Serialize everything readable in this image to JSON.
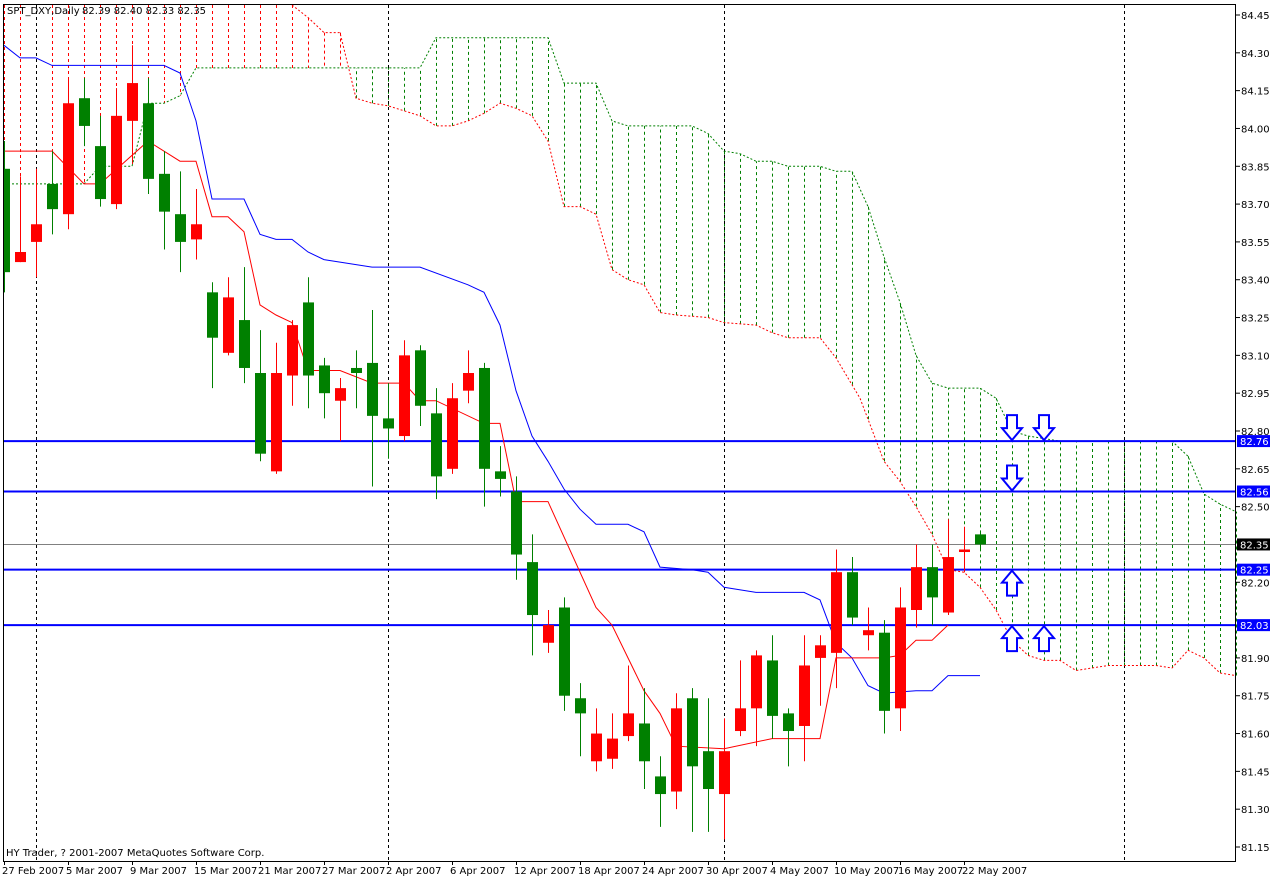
{
  "header": {
    "symbol_period": "SPT_DXY,Daily",
    "ohlc_text": "82.39 82.40 82.33 82.35"
  },
  "footer": {
    "copyright": "HY Trader, ? 2001-2007 MetaQuotes Software Corp."
  },
  "colors": {
    "bull_candle": "#ff0000",
    "bear_candle": "#008000",
    "tenkan": "#ff0000",
    "kijun": "#0000ff",
    "span_a": "#ff0000",
    "span_b": "#008000",
    "level_line": "#0000ff",
    "bid_line": "#808080",
    "arrow": "#0000ff"
  },
  "chart_data": {
    "type": "candlestick",
    "ylim": [
      81.15,
      84.45
    ],
    "y_ticks": [
      "84.45",
      "84.30",
      "84.15",
      "84.00",
      "83.85",
      "83.70",
      "83.55",
      "83.40",
      "83.25",
      "83.10",
      "82.95",
      "82.80",
      "82.65",
      "82.50",
      "82.20",
      "81.90",
      "81.75",
      "81.60",
      "81.45",
      "81.30",
      "81.15"
    ],
    "x_labels": [
      {
        "bar": 0,
        "label": "27 Feb 2007"
      },
      {
        "bar": 4,
        "label": "5 Mar 2007"
      },
      {
        "bar": 8,
        "label": "9 Mar 2007"
      },
      {
        "bar": 12,
        "label": "15 Mar 2007"
      },
      {
        "bar": 16,
        "label": "21 Mar 2007"
      },
      {
        "bar": 20,
        "label": "27 Mar 2007"
      },
      {
        "bar": 24,
        "label": "2 Apr 2007"
      },
      {
        "bar": 28,
        "label": "6 Apr 2007"
      },
      {
        "bar": 32,
        "label": "12 Apr 2007"
      },
      {
        "bar": 36,
        "label": "18 Apr 2007"
      },
      {
        "bar": 40,
        "label": "24 Apr 2007"
      },
      {
        "bar": 44,
        "label": "30 Apr 2007"
      },
      {
        "bar": 48,
        "label": "4 May 2007"
      },
      {
        "bar": 52,
        "label": "10 May 2007"
      },
      {
        "bar": 56,
        "label": "16 May 2007"
      },
      {
        "bar": 60,
        "label": "22 May 2007"
      }
    ],
    "grid_bars": [
      2,
      24,
      45,
      70
    ],
    "candles_ohlc": [
      [
        83.84,
        83.95,
        83.35,
        83.43
      ],
      [
        83.47,
        83.81,
        83.47,
        83.51
      ],
      [
        83.55,
        83.84,
        83.41,
        83.62
      ],
      [
        83.78,
        83.91,
        83.58,
        83.68
      ],
      [
        83.66,
        84.2,
        83.6,
        84.1
      ],
      [
        84.12,
        84.2,
        83.93,
        84.01
      ],
      [
        83.93,
        84.05,
        83.69,
        83.72
      ],
      [
        83.7,
        84.16,
        83.68,
        84.05
      ],
      [
        84.03,
        84.33,
        83.87,
        84.18
      ],
      [
        84.1,
        84.2,
        83.74,
        83.8
      ],
      [
        83.82,
        83.91,
        83.52,
        83.67
      ],
      [
        83.66,
        83.83,
        83.43,
        83.55
      ],
      [
        83.56,
        83.76,
        83.48,
        83.62
      ],
      [
        83.35,
        83.39,
        82.97,
        83.17
      ],
      [
        83.11,
        83.41,
        83.1,
        83.33
      ],
      [
        83.24,
        83.45,
        82.99,
        83.05
      ],
      [
        83.03,
        83.2,
        82.68,
        82.71
      ],
      [
        82.64,
        83.15,
        82.63,
        83.03
      ],
      [
        83.02,
        83.24,
        82.9,
        83.22
      ],
      [
        83.31,
        83.41,
        82.89,
        83.02
      ],
      [
        83.06,
        83.09,
        82.85,
        82.95
      ],
      [
        82.92,
        83.01,
        82.76,
        82.97
      ],
      [
        83.05,
        83.12,
        82.89,
        83.03
      ],
      [
        83.07,
        83.28,
        82.58,
        82.86
      ],
      [
        82.85,
        82.99,
        82.69,
        82.81
      ],
      [
        82.78,
        83.16,
        82.76,
        83.1
      ],
      [
        83.12,
        83.14,
        82.82,
        82.9
      ],
      [
        82.87,
        82.97,
        82.53,
        82.62
      ],
      [
        82.65,
        82.99,
        82.63,
        82.93
      ],
      [
        82.96,
        83.12,
        82.91,
        83.03
      ],
      [
        83.05,
        83.07,
        82.5,
        82.65
      ],
      [
        82.64,
        82.74,
        82.54,
        82.61
      ],
      [
        82.56,
        82.62,
        82.21,
        82.31
      ],
      [
        82.28,
        82.39,
        81.91,
        82.07
      ],
      [
        81.96,
        82.09,
        81.92,
        82.03
      ],
      [
        82.1,
        82.14,
        81.69,
        81.75
      ],
      [
        81.74,
        81.8,
        81.51,
        81.68
      ],
      [
        81.49,
        81.7,
        81.45,
        81.6
      ],
      [
        81.5,
        81.68,
        81.46,
        81.58
      ],
      [
        81.59,
        81.87,
        81.57,
        81.68
      ],
      [
        81.64,
        81.78,
        81.38,
        81.49
      ],
      [
        81.43,
        81.51,
        81.23,
        81.36
      ],
      [
        81.37,
        81.76,
        81.3,
        81.7
      ],
      [
        81.74,
        81.78,
        81.21,
        81.47
      ],
      [
        81.53,
        81.74,
        81.21,
        81.38
      ],
      [
        81.36,
        81.66,
        81.18,
        81.53
      ],
      [
        81.61,
        81.89,
        81.59,
        81.7
      ],
      [
        81.7,
        81.93,
        81.55,
        81.91
      ],
      [
        81.89,
        81.99,
        81.58,
        81.67
      ],
      [
        81.68,
        81.7,
        81.47,
        81.61
      ],
      [
        81.63,
        81.99,
        81.49,
        81.87
      ],
      [
        81.9,
        81.99,
        81.71,
        81.95
      ],
      [
        81.92,
        82.33,
        81.78,
        82.24
      ],
      [
        82.24,
        82.3,
        82.03,
        82.06
      ],
      [
        81.99,
        82.1,
        81.93,
        82.01
      ],
      [
        82.0,
        82.05,
        81.6,
        81.69
      ],
      [
        81.7,
        82.18,
        81.61,
        82.1
      ],
      [
        82.09,
        82.35,
        82.02,
        82.26
      ],
      [
        82.26,
        82.35,
        82.03,
        82.14
      ],
      [
        82.08,
        82.45,
        82.07,
        82.3
      ],
      [
        82.32,
        82.42,
        82.24,
        82.33
      ],
      [
        82.39,
        82.4,
        82.33,
        82.35
      ]
    ],
    "tenkan": [
      [
        0,
        83.91
      ],
      [
        3,
        83.91
      ],
      [
        5,
        83.78
      ],
      [
        6,
        83.78
      ],
      [
        9,
        83.95
      ],
      [
        11,
        83.87
      ],
      [
        12,
        83.87
      ],
      [
        13,
        83.65
      ],
      [
        14,
        83.65
      ],
      [
        15,
        83.59
      ],
      [
        16,
        83.3
      ],
      [
        17,
        83.26
      ],
      [
        18,
        83.23
      ],
      [
        19,
        83.04
      ],
      [
        21,
        83.04
      ],
      [
        23,
        82.99
      ],
      [
        25,
        82.99
      ],
      [
        26,
        82.92
      ],
      [
        27,
        82.92
      ],
      [
        30,
        82.83
      ],
      [
        31,
        82.83
      ],
      [
        32,
        82.52
      ],
      [
        34,
        82.52
      ],
      [
        37,
        82.1
      ],
      [
        38,
        82.03
      ],
      [
        40,
        81.77
      ],
      [
        41,
        81.68
      ],
      [
        42,
        81.55
      ],
      [
        45,
        81.54
      ],
      [
        48,
        81.58
      ],
      [
        51,
        81.58
      ],
      [
        52,
        81.9
      ],
      [
        55,
        81.9
      ],
      [
        56,
        81.91
      ],
      [
        57,
        81.97
      ],
      [
        58,
        81.97
      ],
      [
        59,
        82.03
      ]
    ],
    "kijun": [
      [
        0,
        84.33
      ],
      [
        1,
        84.28
      ],
      [
        2,
        84.28
      ],
      [
        3,
        84.25
      ],
      [
        10,
        84.25
      ],
      [
        11,
        84.22
      ],
      [
        12,
        84.03
      ],
      [
        13,
        83.72
      ],
      [
        15,
        83.72
      ],
      [
        16,
        83.58
      ],
      [
        17,
        83.56
      ],
      [
        18,
        83.56
      ],
      [
        19,
        83.51
      ],
      [
        20,
        83.48
      ],
      [
        23,
        83.45
      ],
      [
        26,
        83.45
      ],
      [
        29,
        83.38
      ],
      [
        30,
        83.35
      ],
      [
        31,
        83.22
      ],
      [
        32,
        82.96
      ],
      [
        33,
        82.78
      ],
      [
        34,
        82.68
      ],
      [
        35,
        82.57
      ],
      [
        36,
        82.49
      ],
      [
        37,
        82.43
      ],
      [
        39,
        82.43
      ],
      [
        40,
        82.4
      ],
      [
        41,
        82.26
      ],
      [
        43,
        82.25
      ],
      [
        44,
        82.24
      ],
      [
        45,
        82.18
      ],
      [
        47,
        82.16
      ],
      [
        50,
        82.16
      ],
      [
        51,
        82.13
      ],
      [
        52,
        81.96
      ],
      [
        53,
        81.9
      ],
      [
        54,
        81.79
      ],
      [
        55,
        81.76
      ],
      [
        57,
        81.77
      ],
      [
        58,
        81.77
      ],
      [
        59,
        81.83
      ],
      [
        61,
        81.83
      ]
    ],
    "span_a": [
      [
        18,
        84.51
      ],
      [
        19,
        84.44
      ],
      [
        20,
        84.38
      ],
      [
        21,
        84.38
      ],
      [
        22,
        84.12
      ],
      [
        23,
        84.1
      ],
      [
        24,
        84.09
      ],
      [
        26,
        84.05
      ],
      [
        27,
        84.01
      ],
      [
        28,
        84.01
      ],
      [
        29,
        84.03
      ],
      [
        30,
        84.06
      ],
      [
        31,
        84.1
      ],
      [
        32,
        84.08
      ],
      [
        33,
        84.05
      ],
      [
        34,
        83.95
      ],
      [
        35,
        83.69
      ],
      [
        36,
        83.69
      ],
      [
        37,
        83.66
      ],
      [
        38,
        83.44
      ],
      [
        39,
        83.4
      ],
      [
        40,
        83.38
      ],
      [
        41,
        83.27
      ],
      [
        42,
        83.26
      ],
      [
        44,
        83.25
      ],
      [
        45,
        83.23
      ],
      [
        47,
        83.22
      ],
      [
        48,
        83.19
      ],
      [
        49,
        83.17
      ],
      [
        51,
        83.17
      ],
      [
        52,
        83.09
      ],
      [
        53.5,
        82.93
      ],
      [
        55,
        82.68
      ],
      [
        56,
        82.6
      ],
      [
        57,
        82.5
      ],
      [
        58,
        82.39
      ],
      [
        59,
        82.25
      ],
      [
        60,
        82.24
      ],
      [
        61,
        82.18
      ],
      [
        62,
        82.09
      ],
      [
        63,
        81.97
      ],
      [
        64,
        81.91
      ],
      [
        65,
        81.89
      ],
      [
        66,
        81.89
      ],
      [
        67,
        81.85
      ],
      [
        68,
        81.86
      ],
      [
        69,
        81.87
      ],
      [
        70,
        81.87
      ],
      [
        72,
        81.87
      ],
      [
        73,
        81.86
      ],
      [
        74,
        81.93
      ],
      [
        75,
        81.9
      ],
      [
        76,
        81.84
      ],
      [
        77,
        81.83
      ]
    ],
    "span_b": [
      [
        0,
        83.78
      ],
      [
        5,
        83.78
      ],
      [
        6,
        83.85
      ],
      [
        8,
        83.85
      ],
      [
        9,
        84.1
      ],
      [
        10,
        84.1
      ],
      [
        11,
        84.13
      ],
      [
        12,
        84.24
      ],
      [
        26,
        84.24
      ],
      [
        27,
        84.36
      ],
      [
        34,
        84.36
      ],
      [
        35,
        84.18
      ],
      [
        37,
        84.18
      ],
      [
        38,
        84.03
      ],
      [
        39,
        84.01
      ],
      [
        43,
        84.01
      ],
      [
        44,
        83.98
      ],
      [
        45,
        83.91
      ],
      [
        46,
        83.9
      ],
      [
        47,
        83.87
      ],
      [
        48,
        83.87
      ],
      [
        49,
        83.85
      ],
      [
        51,
        83.85
      ],
      [
        52,
        83.83
      ],
      [
        53,
        83.83
      ],
      [
        54,
        83.69
      ],
      [
        55,
        83.49
      ],
      [
        56,
        83.31
      ],
      [
        57,
        83.1
      ],
      [
        58,
        82.99
      ],
      [
        59,
        82.97
      ],
      [
        61,
        82.97
      ],
      [
        62,
        82.93
      ],
      [
        63,
        82.8
      ],
      [
        64,
        82.78
      ],
      [
        66,
        82.76
      ],
      [
        73,
        82.76
      ],
      [
        74,
        82.7
      ],
      [
        75,
        82.55
      ],
      [
        76,
        82.51
      ],
      [
        77,
        82.48
      ]
    ],
    "levels": [
      {
        "price": 82.76,
        "label": "82.76"
      },
      {
        "price": 82.56,
        "label": "82.56"
      },
      {
        "price": 82.25,
        "label": "82.25"
      },
      {
        "price": 82.03,
        "label": "82.03"
      }
    ],
    "bid": {
      "price": 82.35,
      "label": "82.35"
    },
    "arrows": [
      {
        "bar": 63,
        "price": 82.76,
        "dir": "down"
      },
      {
        "bar": 65,
        "price": 82.76,
        "dir": "down"
      },
      {
        "bar": 63,
        "price": 82.56,
        "dir": "down"
      },
      {
        "bar": 63,
        "price": 82.25,
        "dir": "up"
      },
      {
        "bar": 63,
        "price": 82.03,
        "dir": "up"
      },
      {
        "bar": 65,
        "price": 82.03,
        "dir": "up"
      }
    ]
  }
}
